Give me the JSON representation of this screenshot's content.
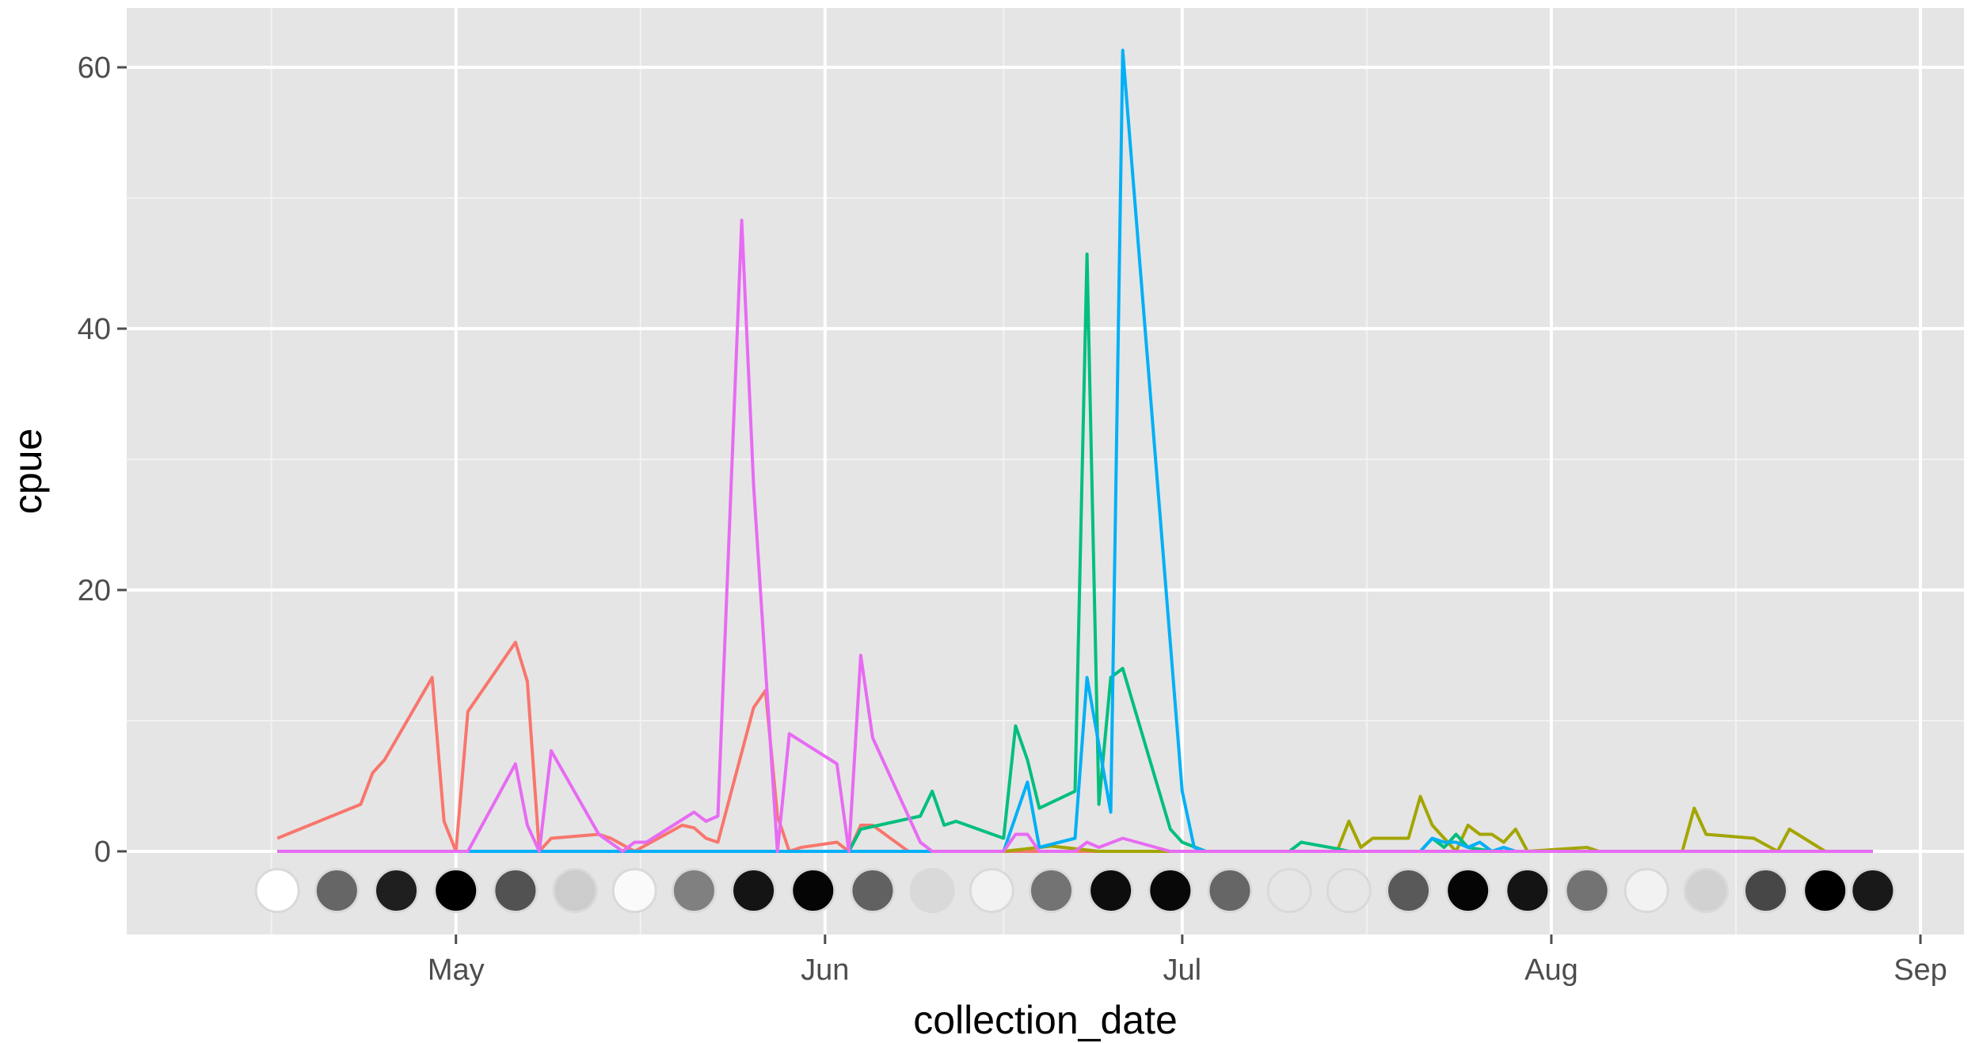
{
  "chart_data": {
    "type": "line",
    "title": "",
    "xlabel": "collection_date",
    "ylabel": "cpue",
    "ylim": [
      -6.5,
      65
    ],
    "xlim": [
      "2014-04-10",
      "2014-09-01"
    ],
    "grid": true,
    "legend": "none",
    "x_ticks": [
      {
        "date": "2014-05-01",
        "label": "May"
      },
      {
        "date": "2014-06-01",
        "label": "Jun"
      },
      {
        "date": "2014-07-01",
        "label": "Jul"
      },
      {
        "date": "2014-08-01",
        "label": "Aug"
      },
      {
        "date": "2014-09-01",
        "label": "Sep"
      }
    ],
    "y_ticks": [
      {
        "value": 0,
        "label": "0"
      },
      {
        "value": 20,
        "label": "20"
      },
      {
        "value": 40,
        "label": "40"
      },
      {
        "value": 60,
        "label": "60"
      }
    ],
    "series": [
      {
        "color": "#F8766D",
        "points": [
          [
            "2014-04-16",
            1
          ],
          [
            "2014-04-23",
            3.6
          ],
          [
            "2014-04-24",
            6
          ],
          [
            "2014-04-25",
            7
          ],
          [
            "2014-04-29",
            13.3
          ],
          [
            "2014-04-30",
            2.3
          ],
          [
            "2014-05-01",
            0
          ],
          [
            "2014-05-02",
            10.7
          ],
          [
            "2014-05-06",
            16
          ],
          [
            "2014-05-07",
            13
          ],
          [
            "2014-05-08",
            0
          ],
          [
            "2014-05-09",
            1
          ],
          [
            "2014-05-13",
            1.3
          ],
          [
            "2014-05-14",
            1
          ],
          [
            "2014-05-16",
            0
          ],
          [
            "2014-05-20",
            2
          ],
          [
            "2014-05-21",
            1.8
          ],
          [
            "2014-05-22",
            1
          ],
          [
            "2014-05-23",
            0.7
          ],
          [
            "2014-05-26",
            11
          ],
          [
            "2014-05-27",
            12.3
          ],
          [
            "2014-05-28",
            2.7
          ],
          [
            "2014-05-29",
            0
          ],
          [
            "2014-05-30",
            0.3
          ],
          [
            "2014-06-02",
            0.7
          ],
          [
            "2014-06-03",
            0
          ],
          [
            "2014-06-04",
            2
          ],
          [
            "2014-06-05",
            2
          ],
          [
            "2014-06-08",
            0
          ],
          [
            "2014-08-28",
            0
          ]
        ]
      },
      {
        "color": "#A3A500",
        "points": [
          [
            "2014-06-16",
            0
          ],
          [
            "2014-06-20",
            0.4
          ],
          [
            "2014-06-24",
            0
          ],
          [
            "2014-07-14",
            0
          ],
          [
            "2014-07-15",
            2.3
          ],
          [
            "2014-07-16",
            0.3
          ],
          [
            "2014-07-17",
            1
          ],
          [
            "2014-07-20",
            1
          ],
          [
            "2014-07-21",
            4.2
          ],
          [
            "2014-07-22",
            2
          ],
          [
            "2014-07-23",
            1
          ],
          [
            "2014-07-24",
            0
          ],
          [
            "2014-07-25",
            2
          ],
          [
            "2014-07-26",
            1.3
          ],
          [
            "2014-07-27",
            1.3
          ],
          [
            "2014-07-28",
            0.7
          ],
          [
            "2014-07-29",
            1.7
          ],
          [
            "2014-07-30",
            0
          ],
          [
            "2014-08-04",
            0.3
          ],
          [
            "2014-08-05",
            0
          ],
          [
            "2014-08-12",
            0
          ],
          [
            "2014-08-13",
            3.3
          ],
          [
            "2014-08-14",
            1.3
          ],
          [
            "2014-08-18",
            1
          ],
          [
            "2014-08-20",
            0
          ],
          [
            "2014-08-21",
            1.7
          ],
          [
            "2014-08-24",
            0
          ],
          [
            "2014-08-28",
            0
          ]
        ]
      },
      {
        "color": "#00BF7D",
        "points": [
          [
            "2014-06-03",
            0
          ],
          [
            "2014-06-04",
            1.7
          ],
          [
            "2014-06-09",
            2.7
          ],
          [
            "2014-06-10",
            4.6
          ],
          [
            "2014-06-11",
            2
          ],
          [
            "2014-06-12",
            2.3
          ],
          [
            "2014-06-16",
            1
          ],
          [
            "2014-06-17",
            9.6
          ],
          [
            "2014-06-18",
            7
          ],
          [
            "2014-06-19",
            3.3
          ],
          [
            "2014-06-22",
            4.6
          ],
          [
            "2014-06-23",
            45.7
          ],
          [
            "2014-06-24",
            3.6
          ],
          [
            "2014-06-25",
            13.3
          ],
          [
            "2014-06-26",
            14
          ],
          [
            "2014-06-30",
            1.7
          ],
          [
            "2014-07-01",
            0.7
          ],
          [
            "2014-07-03",
            0
          ],
          [
            "2014-07-10",
            0
          ],
          [
            "2014-07-11",
            0.7
          ],
          [
            "2014-07-14",
            0.2
          ],
          [
            "2014-07-15",
            0
          ],
          [
            "2014-07-21",
            0
          ],
          [
            "2014-07-22",
            1
          ],
          [
            "2014-07-23",
            0.3
          ],
          [
            "2014-07-24",
            1.3
          ],
          [
            "2014-07-25",
            0.3
          ],
          [
            "2014-07-27",
            0
          ],
          [
            "2014-08-28",
            0
          ]
        ]
      },
      {
        "color": "#00B0F6",
        "points": [
          [
            "2014-04-16",
            0
          ],
          [
            "2014-06-16",
            0
          ],
          [
            "2014-06-18",
            5.3
          ],
          [
            "2014-06-19",
            0.3
          ],
          [
            "2014-06-22",
            1
          ],
          [
            "2014-06-23",
            13.3
          ],
          [
            "2014-06-25",
            3
          ],
          [
            "2014-06-26",
            61.3
          ],
          [
            "2014-07-01",
            4.6
          ],
          [
            "2014-07-02",
            0.3
          ],
          [
            "2014-07-03",
            0
          ],
          [
            "2014-07-21",
            0
          ],
          [
            "2014-07-22",
            1
          ],
          [
            "2014-07-23",
            0.7
          ],
          [
            "2014-07-24",
            0.7
          ],
          [
            "2014-07-25",
            0.3
          ],
          [
            "2014-07-26",
            0.7
          ],
          [
            "2014-07-27",
            0
          ],
          [
            "2014-07-28",
            0.3
          ],
          [
            "2014-07-29",
            0
          ],
          [
            "2014-08-28",
            0
          ]
        ]
      },
      {
        "color": "#E76BF3",
        "points": [
          [
            "2014-04-16",
            0
          ],
          [
            "2014-05-02",
            0
          ],
          [
            "2014-05-06",
            6.7
          ],
          [
            "2014-05-07",
            2
          ],
          [
            "2014-05-08",
            0
          ],
          [
            "2014-05-09",
            7.7
          ],
          [
            "2014-05-13",
            1.3
          ],
          [
            "2014-05-15",
            0
          ],
          [
            "2014-05-16",
            0.7
          ],
          [
            "2014-05-17",
            0.7
          ],
          [
            "2014-05-21",
            3
          ],
          [
            "2014-05-22",
            2.3
          ],
          [
            "2014-05-23",
            2.7
          ],
          [
            "2014-05-25",
            48.3
          ],
          [
            "2014-05-26",
            28
          ],
          [
            "2014-05-28",
            0
          ],
          [
            "2014-05-29",
            9
          ],
          [
            "2014-06-02",
            6.7
          ],
          [
            "2014-06-03",
            0
          ],
          [
            "2014-06-04",
            15
          ],
          [
            "2014-06-05",
            8.7
          ],
          [
            "2014-06-09",
            0.7
          ],
          [
            "2014-06-10",
            0
          ],
          [
            "2014-06-16",
            0
          ],
          [
            "2014-06-17",
            1.3
          ],
          [
            "2014-06-18",
            1.3
          ],
          [
            "2014-06-19",
            0
          ],
          [
            "2014-06-22",
            0
          ],
          [
            "2014-06-23",
            0.7
          ],
          [
            "2014-06-24",
            0.3
          ],
          [
            "2014-06-26",
            1
          ],
          [
            "2014-06-30",
            0
          ],
          [
            "2014-08-28",
            0
          ]
        ]
      }
    ],
    "markers": {
      "y": -3,
      "points": [
        [
          "2014-04-16",
          0.0
        ],
        [
          "2014-04-21",
          0.6
        ],
        [
          "2014-04-26",
          0.88
        ],
        [
          "2014-05-01",
          1.0
        ],
        [
          "2014-05-06",
          0.68
        ],
        [
          "2014-05-11",
          0.2
        ],
        [
          "2014-05-16",
          0.02
        ],
        [
          "2014-05-21",
          0.5
        ],
        [
          "2014-05-26",
          0.92
        ],
        [
          "2014-05-31",
          0.98
        ],
        [
          "2014-06-05",
          0.62
        ],
        [
          "2014-06-10",
          0.15
        ],
        [
          "2014-06-15",
          0.05
        ],
        [
          "2014-06-20",
          0.55
        ],
        [
          "2014-06-25",
          0.95
        ],
        [
          "2014-06-30",
          0.97
        ],
        [
          "2014-07-05",
          0.6
        ],
        [
          "2014-07-10",
          0.1
        ],
        [
          "2014-07-15",
          0.1
        ],
        [
          "2014-07-20",
          0.65
        ],
        [
          "2014-07-25",
          0.98
        ],
        [
          "2014-07-30",
          0.92
        ],
        [
          "2014-08-04",
          0.55
        ],
        [
          "2014-08-09",
          0.05
        ],
        [
          "2014-08-14",
          0.18
        ],
        [
          "2014-08-19",
          0.72
        ],
        [
          "2014-08-24",
          1.0
        ],
        [
          "2014-08-28",
          0.9
        ]
      ]
    }
  }
}
